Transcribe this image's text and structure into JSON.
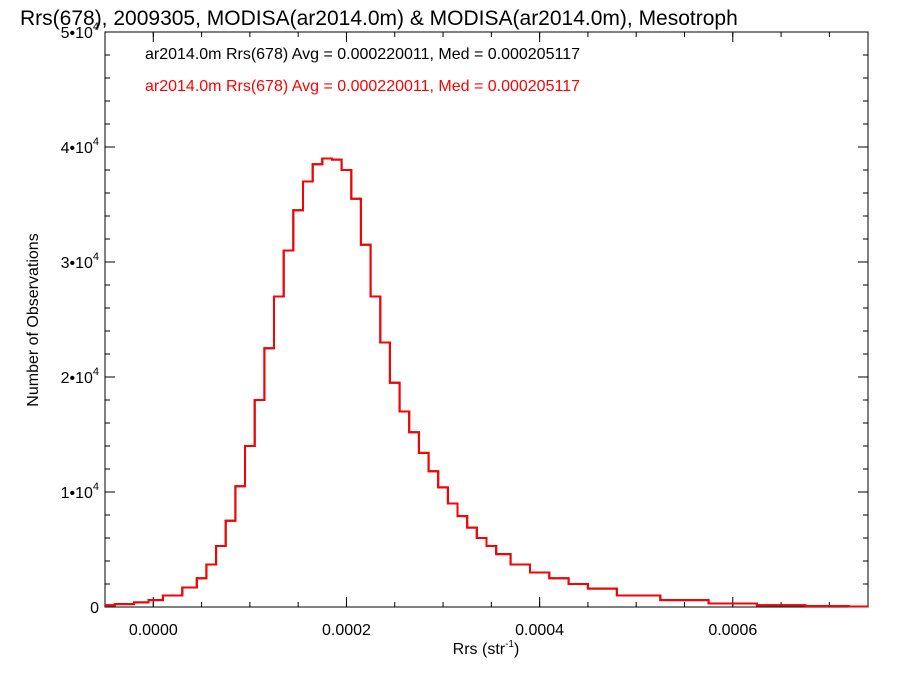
{
  "chart_data": {
    "type": "line",
    "step": true,
    "title": "Rrs(678), 2009305, MODISA(ar2014.0m) & MODISA(ar2014.0m), Mesotroph",
    "xlabel": {
      "main": "Rrs (str",
      "sup": "-1",
      "close": ")"
    },
    "ylabel": "Number of Observations",
    "xlim": [
      -5e-05,
      0.00074
    ],
    "ylim": [
      0,
      50000
    ],
    "x_ticks": [
      {
        "value": 0.0,
        "label": "0.0000"
      },
      {
        "value": 0.0002,
        "label": "0.0002"
      },
      {
        "value": 0.0004,
        "label": "0.0004"
      },
      {
        "value": 0.0006,
        "label": "0.0006"
      }
    ],
    "y_ticks": [
      {
        "value": 0,
        "label": "0",
        "exp": ""
      },
      {
        "value": 10000,
        "label": "1•10",
        "exp": "4"
      },
      {
        "value": 20000,
        "label": "2•10",
        "exp": "4"
      },
      {
        "value": 30000,
        "label": "3•10",
        "exp": "4"
      },
      {
        "value": 40000,
        "label": "4•10",
        "exp": "4"
      },
      {
        "value": 50000,
        "label": "5•10",
        "exp": "4"
      }
    ],
    "grid": false,
    "legend_position": "top-left",
    "series": [
      {
        "name": "ar2014.0m Rrs(678) Avg = 0.000220011, Med = 0.000205117",
        "color": "#000000",
        "x": [
          -5e-05,
          -3e-05,
          -1e-05,
          0.0,
          2e-05,
          4e-05,
          5e-05,
          6e-05,
          7e-05,
          8e-05,
          9e-05,
          0.0001,
          0.00011,
          0.00012,
          0.00013,
          0.00014,
          0.00015,
          0.00016,
          0.00017,
          0.00018,
          0.00019,
          0.0002,
          0.00021,
          0.00022,
          0.00023,
          0.00024,
          0.00025,
          0.00026,
          0.00027,
          0.00028,
          0.00029,
          0.0003,
          0.00031,
          0.00032,
          0.00033,
          0.00034,
          0.00035,
          0.00036,
          0.00038,
          0.0004,
          0.00042,
          0.00044,
          0.00046,
          0.0005,
          0.00055,
          0.0006,
          0.00065,
          0.0007,
          0.00074
        ],
        "y": [
          150,
          250,
          400,
          600,
          1000,
          1700,
          2500,
          3700,
          5300,
          7500,
          10500,
          14000,
          18000,
          22500,
          27000,
          31000,
          34500,
          37000,
          38500,
          39000,
          38900,
          38000,
          35500,
          31500,
          27000,
          23000,
          19500,
          17000,
          15200,
          13400,
          11800,
          10400,
          9000,
          7900,
          6900,
          6000,
          5300,
          4600,
          3700,
          3000,
          2500,
          2000,
          1600,
          1000,
          600,
          300,
          150,
          80,
          40
        ]
      },
      {
        "name": "ar2014.0m Rrs(678) Avg = 0.000220011, Med = 0.000205117",
        "color": "#ff0000",
        "x": [
          -5e-05,
          -3e-05,
          -1e-05,
          0.0,
          2e-05,
          4e-05,
          5e-05,
          6e-05,
          7e-05,
          8e-05,
          9e-05,
          0.0001,
          0.00011,
          0.00012,
          0.00013,
          0.00014,
          0.00015,
          0.00016,
          0.00017,
          0.00018,
          0.00019,
          0.0002,
          0.00021,
          0.00022,
          0.00023,
          0.00024,
          0.00025,
          0.00026,
          0.00027,
          0.00028,
          0.00029,
          0.0003,
          0.00031,
          0.00032,
          0.00033,
          0.00034,
          0.00035,
          0.00036,
          0.00038,
          0.0004,
          0.00042,
          0.00044,
          0.00046,
          0.0005,
          0.00055,
          0.0006,
          0.00065,
          0.0007,
          0.00074
        ],
        "y": [
          150,
          250,
          400,
          600,
          1000,
          1700,
          2500,
          3700,
          5300,
          7500,
          10500,
          14000,
          18000,
          22500,
          27000,
          31000,
          34500,
          37000,
          38500,
          39000,
          38900,
          38000,
          35500,
          31500,
          27000,
          23000,
          19500,
          17000,
          15200,
          13400,
          11800,
          10400,
          9000,
          7900,
          6900,
          6000,
          5300,
          4600,
          3700,
          3000,
          2500,
          2000,
          1600,
          1000,
          600,
          300,
          150,
          80,
          40
        ]
      }
    ]
  }
}
